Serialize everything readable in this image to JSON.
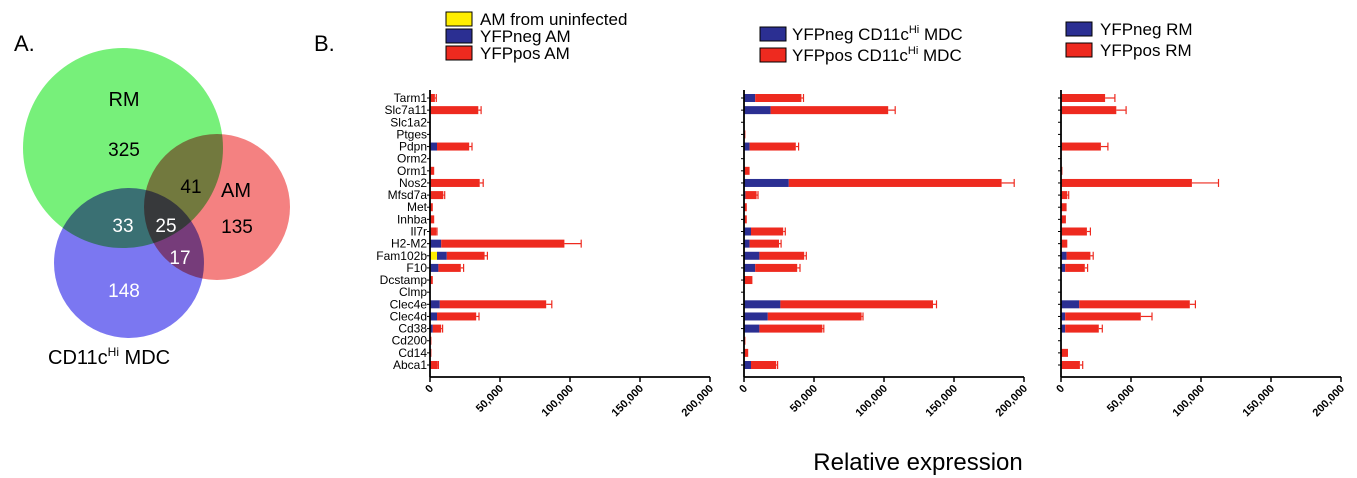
{
  "panel_a_label": "A.",
  "panel_b_label": "B.",
  "colors": {
    "uninfected": "#ffee00",
    "neg": "#2b2f92",
    "pos": "#ee2a1f",
    "rm_circle": "#77f07a",
    "am_circle": "#f26b6b",
    "mdc_circle": "#7470f0"
  },
  "venn": {
    "rm_label": "RM",
    "am_label": "AM",
    "mdc_label_main": "CD11c",
    "mdc_label_sup": "Hi",
    "mdc_label_tail": " MDC",
    "rm_only": "325",
    "am_only": "135",
    "mdc_only": "148",
    "rm_am": "41",
    "rm_mdc": "33",
    "am_mdc": "17",
    "all": "25"
  },
  "legends": {
    "am": [
      {
        "key": "uninfected",
        "text": "AM from uninfected"
      },
      {
        "key": "neg",
        "text": "YFPneg AM"
      },
      {
        "key": "pos",
        "text": "YFPpos AM"
      }
    ],
    "mdc": [
      {
        "key": "neg",
        "main": "YFPneg CD11c",
        "sup": "Hi",
        "tail": " MDC"
      },
      {
        "key": "pos",
        "main": "YFPpos CD11c",
        "sup": "Hi",
        "tail": " MDC"
      }
    ],
    "rm": [
      {
        "key": "neg",
        "text": "YFPneg RM"
      },
      {
        "key": "pos",
        "text": "YFPpos RM"
      }
    ]
  },
  "chart_data": {
    "type": "bar",
    "orientation": "horizontal",
    "stacked": true,
    "xlabel": "Relative expression",
    "xlim": [
      0,
      200000
    ],
    "xticks": [
      0,
      50000,
      100000,
      150000,
      200000
    ],
    "xtick_labels": [
      "0",
      "50,000",
      "100,000",
      "150,000",
      "200,000"
    ],
    "categories": [
      "Tarm1",
      "Slc7a11",
      "Slc1a2",
      "Ptges",
      "Pdpn",
      "Orm2",
      "Orm1",
      "Nos2",
      "Mfsd7a",
      "Met",
      "Inhba",
      "Il7r",
      "H2-M2",
      "Fam102b",
      "F10",
      "Dcstamp",
      "Clmp",
      "Clec4e",
      "Clec4d",
      "Cd38",
      "Cd200",
      "Cd14",
      "Abca1"
    ],
    "panels": [
      {
        "name": "AM",
        "series": [
          {
            "name": "AM from uninfected",
            "values": [
              0,
              0,
              0,
              0,
              0,
              0,
              0,
              0,
              0,
              0,
              0,
              0,
              0,
              5000,
              0,
              0,
              0,
              0,
              0,
              0,
              0,
              0,
              0
            ]
          },
          {
            "name": "YFPneg AM",
            "values": [
              500,
              500,
              0,
              0,
              5000,
              0,
              0,
              500,
              500,
              0,
              0,
              500,
              8000,
              7000,
              6000,
              0,
              0,
              7000,
              5000,
              2000,
              0,
              0,
              500
            ]
          },
          {
            "name": "YFPpos AM",
            "values": [
              3000,
              34000,
              0,
              0,
              23000,
              0,
              3000,
              35000,
              9000,
              2000,
              3000,
              4000,
              88000,
              27000,
              16000,
              2000,
              0,
              76000,
              28000,
              6000,
              1000,
              1000,
              5000
            ]
          }
        ],
        "errors": [
          1000,
          2000,
          0,
          0,
          2000,
          0,
          0,
          2500,
          1000,
          0,
          0,
          500,
          12000,
          2000,
          2000,
          0,
          0,
          4000,
          2000,
          1000,
          0,
          0,
          500
        ]
      },
      {
        "name": "MDC",
        "series": [
          {
            "name": "YFPneg CD11c Hi MDC",
            "values": [
              8000,
              19000,
              0,
              0,
              4000,
              0,
              0,
              32000,
              1000,
              0,
              0,
              5000,
              4000,
              11000,
              8000,
              0,
              0,
              26000,
              17000,
              11000,
              0,
              0,
              5000
            ]
          },
          {
            "name": "YFPpos CD11c Hi MDC",
            "values": [
              33000,
              84000,
              0,
              1000,
              33000,
              0,
              4000,
              152000,
              8000,
              2000,
              2000,
              23000,
              21000,
              32000,
              30000,
              6000,
              0,
              109000,
              67000,
              45000,
              1000,
              3000,
              18000
            ]
          }
        ],
        "errors": [
          1500,
          5000,
          0,
          0,
          2000,
          0,
          0,
          9000,
          1000,
          0,
          0,
          1500,
          1500,
          1500,
          2000,
          0,
          0,
          2500,
          1000,
          1000,
          0,
          0,
          1000
        ]
      },
      {
        "name": "RM",
        "series": [
          {
            "name": "YFPneg RM",
            "values": [
              500,
              500,
              0,
              0,
              500,
              0,
              0,
              500,
              500,
              0,
              500,
              500,
              500,
              4000,
              3000,
              0,
              0,
              13000,
              3000,
              3000,
              0,
              0,
              500
            ]
          },
          {
            "name": "YFPpos RM",
            "values": [
              31000,
              39000,
              0,
              0,
              28000,
              0,
              1000,
              93000,
              4000,
              4000,
              3000,
              18000,
              4000,
              17000,
              14000,
              0,
              0,
              79000,
              54000,
              24000,
              0,
              5000,
              13000
            ]
          }
        ],
        "errors": [
          7000,
          7000,
          0,
          0,
          5000,
          0,
          0,
          19000,
          1000,
          0,
          0,
          2500,
          0,
          2000,
          2000,
          0,
          0,
          4000,
          8000,
          2500,
          0,
          0,
          2000
        ]
      }
    ]
  }
}
